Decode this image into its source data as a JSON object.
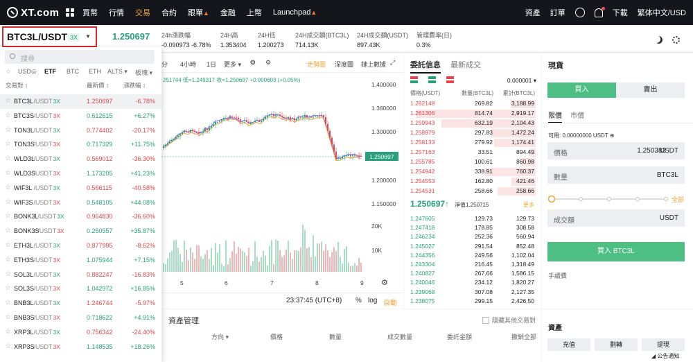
{
  "nav": {
    "logo": "XT.com",
    "items": [
      "買幣",
      "行情",
      "交易",
      "合約",
      "跟單",
      "金融",
      "上幣",
      "Launchpad"
    ],
    "right": [
      "資產",
      "訂單",
      "下載",
      "繁体中文/USD"
    ]
  },
  "ticker": {
    "pair": "BTC3L/USDT",
    "leverage": "3X",
    "price": "1.250697",
    "stats": [
      {
        "label": "24h漲跌幅",
        "value": "-0.090973 -6.78%",
        "color": "red"
      },
      {
        "label": "24H高",
        "value": "1.353404"
      },
      {
        "label": "24H低",
        "value": "1.200273"
      },
      {
        "label": "24H成交額(BTC3L)",
        "value": "714.13K"
      },
      {
        "label": "24H成交額(USDT)",
        "value": "897.43K"
      },
      {
        "label": "管理費率(日)",
        "value": "0.3%"
      }
    ]
  },
  "dropdown": {
    "search_placeholder": "搜尋",
    "filters": [
      "USD◎",
      "ETF",
      "BTC",
      "ETH",
      "ALTS ▾",
      "板塊 ▾"
    ],
    "headers": {
      "pair": "交易對 ↕",
      "price": "最新價 ↕",
      "change": "漲跌幅 ↕"
    },
    "rows": [
      {
        "base": "BTC3L",
        "quote": "/USDT",
        "lev": "3X",
        "price": "1.250697",
        "change": "-6.78%",
        "up": false
      },
      {
        "base": "BTC3S",
        "quote": "/USDT",
        "lev": "3X",
        "price": "0.612615",
        "change": "+6.27%",
        "up": true
      },
      {
        "base": "TON3L",
        "quote": "/USDT",
        "lev": "3X",
        "price": "0.774402",
        "change": "-20.17%",
        "up": false
      },
      {
        "base": "TON3S",
        "quote": "/USDT",
        "lev": "3X",
        "price": "0.717329",
        "change": "+11.75%",
        "up": true
      },
      {
        "base": "WLD3L",
        "quote": "/USDT",
        "lev": "3X",
        "price": "0.569012",
        "change": "-36.30%",
        "up": false
      },
      {
        "base": "WLD3S",
        "quote": "/USDT",
        "lev": "3X",
        "price": "1.173205",
        "change": "+41.23%",
        "up": true
      },
      {
        "base": "WIF3L",
        "quote": "/USDT",
        "lev": "3X",
        "price": "0.566115",
        "change": "-40.58%",
        "up": false
      },
      {
        "base": "WIF3S",
        "quote": "/USDT",
        "lev": "3X",
        "price": "0.548105",
        "change": "+44.08%",
        "up": true
      },
      {
        "base": "BONK3L",
        "quote": "/USDT",
        "lev": "3X",
        "price": "0.964830",
        "change": "-36.60%",
        "up": false
      },
      {
        "base": "BONK3S",
        "quote": "/USDT",
        "lev": "3X",
        "price": "0.250557",
        "change": "+35.87%",
        "up": true
      },
      {
        "base": "ETH3L",
        "quote": "/USDT",
        "lev": "3X",
        "price": "0.877995",
        "change": "-8.62%",
        "up": false
      },
      {
        "base": "ETH3S",
        "quote": "/USDT",
        "lev": "3X",
        "price": "1.075944",
        "change": "+7.15%",
        "up": true
      },
      {
        "base": "SOL3L",
        "quote": "/USDT",
        "lev": "3X",
        "price": "0.882247",
        "change": "-16.83%",
        "up": false
      },
      {
        "base": "SOL3S",
        "quote": "/USDT",
        "lev": "3X",
        "price": "1.042972",
        "change": "+16.85%",
        "up": true
      },
      {
        "base": "BNB3L",
        "quote": "/USDT",
        "lev": "3X",
        "price": "1.246744",
        "change": "-5.97%",
        "up": false
      },
      {
        "base": "BNB3S",
        "quote": "/USDT",
        "lev": "3X",
        "price": "0.718622",
        "change": "+4.91%",
        "up": true
      },
      {
        "base": "XRP3L",
        "quote": "/USDT",
        "lev": "3X",
        "price": "0.756342",
        "change": "-24.40%",
        "up": false
      },
      {
        "base": "XRP3S",
        "quote": "/USDT",
        "lev": "3X",
        "price": "1.148535",
        "change": "+18.26%",
        "up": true
      }
    ]
  },
  "chart": {
    "toolbar": {
      "min": "分",
      "h4": "4小時",
      "d1": "1日",
      "more": "更多 ▾",
      "main": "走勢圖",
      "depth": "深度圖",
      "online": "鏈上數據"
    },
    "ohlc": "251744 低=1.249317 收=1.250697 +0.000603 (+0.05%)",
    "price_axis": [
      "1.400000",
      "1.360000",
      "1.300000",
      "1.250000",
      "1.200000",
      "1.150000",
      "20K",
      "10K"
    ],
    "current_tag": "1.250697",
    "x_axis": [
      "5",
      "6",
      "7",
      "8",
      "9"
    ],
    "time": "23:37:45 (UTC+8)",
    "pct": "%",
    "log": "log",
    "auto": "自動"
  },
  "bottom": {
    "tab": "資產管理",
    "hide_others": "隱藏其他交易對",
    "columns": [
      "方向 ▾",
      "價格",
      "數量",
      "成交數量",
      "委託金額",
      "撤銷全部"
    ]
  },
  "book": {
    "tab_active": "委託信息",
    "tab_other": "最新成交",
    "precision": "0.000001 ▾",
    "headers": [
      "價格(USDT)",
      "數量(BTC3L)",
      "累計(BTC3L)"
    ],
    "asks": [
      {
        "p": "1.262148",
        "q": "269.82",
        "t": "3,188.99",
        "d": 0.2
      },
      {
        "p": "1.261306",
        "q": "814.74",
        "t": "2,919.17",
        "d": 0.95
      },
      {
        "p": "1.259943",
        "q": "632.19",
        "t": "2,104.43",
        "d": 0.75
      },
      {
        "p": "1.258979",
        "q": "297.83",
        "t": "1,472.24",
        "d": 0.35
      },
      {
        "p": "1.258133",
        "q": "279.92",
        "t": "1,174.41",
        "d": 0.33
      },
      {
        "p": "1.257163",
        "q": "33.51",
        "t": "894.49",
        "d": 0.05
      },
      {
        "p": "1.255785",
        "q": "100.61",
        "t": "860.98",
        "d": 0.12
      },
      {
        "p": "1.254942",
        "q": "338.91",
        "t": "760.37",
        "d": 0.4
      },
      {
        "p": "1.254553",
        "q": "162.80",
        "t": "421.46",
        "d": 0.19
      },
      {
        "p": "1.254531",
        "q": "258.66",
        "t": "258.66",
        "d": 0.3
      }
    ],
    "mid": "1.250697↑",
    "mid_sub": "淨值1.250715",
    "more": "更多",
    "bids": [
      {
        "p": "1.247605",
        "q": "129.73",
        "t": "129.73"
      },
      {
        "p": "1.247418",
        "q": "178.85",
        "t": "308.58"
      },
      {
        "p": "1.246234",
        "q": "252.36",
        "t": "560.94"
      },
      {
        "p": "1.245027",
        "q": "291.54",
        "t": "852.48"
      },
      {
        "p": "1.244356",
        "q": "249.56",
        "t": "1,102.04"
      },
      {
        "p": "1.243304",
        "q": "216.45",
        "t": "1,318.49"
      },
      {
        "p": "1.240827",
        "q": "267.66",
        "t": "1,586.15"
      },
      {
        "p": "1.240046",
        "q": "234.12",
        "t": "1,820.27"
      },
      {
        "p": "1.239068",
        "q": "307.08",
        "t": "2,127.35"
      },
      {
        "p": "1.238075",
        "q": "299.15",
        "t": "2,426.50"
      }
    ]
  },
  "trade": {
    "title": "現貨",
    "buy": "買入",
    "sell": "賣出",
    "limit": "限價",
    "market": "市價",
    "available": "可用: 0.00000000 USDT ⊕",
    "price_label": "價格",
    "price_value": "1.250383",
    "price_unit": "USDT",
    "qty_label": "數量",
    "qty_unit": "BTC3L",
    "all": "全部",
    "amount_label": "成交額",
    "amount_unit": "USDT",
    "submit": "買入 BTC3L",
    "fee": "手續費"
  },
  "assets": {
    "title": "資產",
    "buttons": [
      "充值",
      "劃轉",
      "提現"
    ],
    "notice": "◢ 公告通知"
  }
}
